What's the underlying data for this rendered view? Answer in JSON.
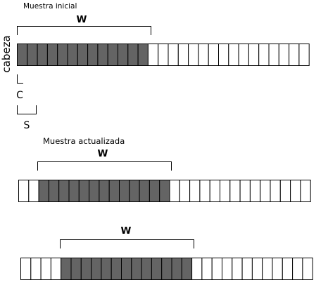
{
  "diagram": {
    "initial": {
      "caption": "Muestra inicial",
      "window_label": "W",
      "total_cells": 29,
      "window_start_cell": 0,
      "window_cells": 13
    },
    "updated_1": {
      "caption": "Muestra actualizada",
      "window_label": "W",
      "total_cells": 29,
      "window_start_cell": 2,
      "window_cells": 13
    },
    "updated_2": {
      "caption": "",
      "window_label": "W",
      "total_cells": 29,
      "window_start_cell": 4,
      "window_cells": 13
    },
    "side_label": "cabeza",
    "c_label": "C",
    "s_label": "S",
    "colors": {
      "window_fill": "#646464",
      "cell_fill": "#ffffff",
      "cell_stroke": "#000000"
    }
  }
}
